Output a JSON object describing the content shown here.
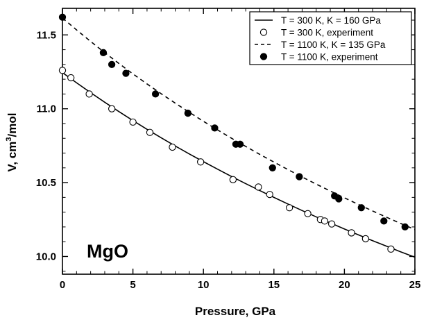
{
  "chart_data": {
    "type": "scatter",
    "xlabel": "Pressure, GPa",
    "ylabel_main": "V, cm",
    "ylabel_sup": "3",
    "ylabel_tail": "/mol",
    "xlim": [
      0,
      25
    ],
    "ylim": [
      9.88,
      11.68
    ],
    "x_ticks": [
      0,
      5,
      10,
      15,
      20,
      25
    ],
    "y_ticks": [
      10.0,
      10.5,
      11.0,
      11.5
    ],
    "x_tick_labels": [
      "0",
      "5",
      "10",
      "15",
      "20",
      "25"
    ],
    "y_tick_labels": [
      "10.0",
      "10.5",
      "11.0",
      "11.5"
    ],
    "grid": false,
    "legend_position": "top-right",
    "annotation": "MgO",
    "series": [
      {
        "name": "T = 300 K, K = 160 GPa",
        "kind": "line",
        "style": "solid",
        "x": [
          0,
          1,
          2,
          3,
          4,
          5,
          6,
          7,
          8,
          9,
          10,
          11,
          12,
          13,
          14,
          15,
          16,
          17,
          18,
          19,
          20,
          21,
          22,
          23,
          24,
          25
        ],
        "y": [
          11.245,
          11.176,
          11.109,
          11.044,
          10.981,
          10.92,
          10.861,
          10.804,
          10.748,
          10.694,
          10.642,
          10.591,
          10.541,
          10.493,
          10.446,
          10.4,
          10.355,
          10.311,
          10.268,
          10.227,
          10.186,
          10.146,
          10.107,
          10.069,
          10.031,
          9.995
        ]
      },
      {
        "name": "T = 300 K, experiment",
        "kind": "points",
        "marker": "open-circle",
        "x": [
          0,
          0.6,
          1.9,
          3.5,
          5.0,
          6.2,
          7.8,
          9.8,
          12.1,
          13.9,
          14.7,
          16.1,
          17.4,
          18.3,
          18.6,
          19.1,
          20.5,
          21.5,
          23.3
        ],
        "y": [
          11.26,
          11.21,
          11.1,
          11.0,
          10.91,
          10.84,
          10.74,
          10.64,
          10.52,
          10.47,
          10.42,
          10.33,
          10.29,
          10.25,
          10.24,
          10.22,
          10.16,
          10.12,
          10.05
        ]
      },
      {
        "name": "T = 1100 K, K = 135 GPa",
        "kind": "line",
        "style": "dashed",
        "x": [
          0,
          1,
          2,
          3,
          4,
          5,
          6,
          7,
          8,
          9,
          10,
          11,
          12,
          13,
          14,
          15,
          16,
          17,
          18,
          19,
          20,
          21,
          22,
          23,
          24,
          25
        ],
        "y": [
          11.615,
          11.534,
          11.456,
          11.38,
          11.307,
          11.236,
          11.168,
          11.102,
          11.038,
          10.976,
          10.915,
          10.857,
          10.8,
          10.745,
          10.691,
          10.639,
          10.588,
          10.538,
          10.49,
          10.443,
          10.397,
          10.352,
          10.308,
          10.265,
          10.223,
          10.182
        ]
      },
      {
        "name": "T = 1100 K, experiment",
        "kind": "points",
        "marker": "filled-circle",
        "x": [
          0,
          2.9,
          3.5,
          4.5,
          6.6,
          8.9,
          10.8,
          12.3,
          12.6,
          14.9,
          16.8,
          19.3,
          19.6,
          21.2,
          22.8,
          24.3
        ],
        "y": [
          11.62,
          11.38,
          11.3,
          11.24,
          11.1,
          10.97,
          10.87,
          10.76,
          10.76,
          10.6,
          10.54,
          10.41,
          10.39,
          10.33,
          10.24,
          10.2
        ]
      }
    ]
  }
}
